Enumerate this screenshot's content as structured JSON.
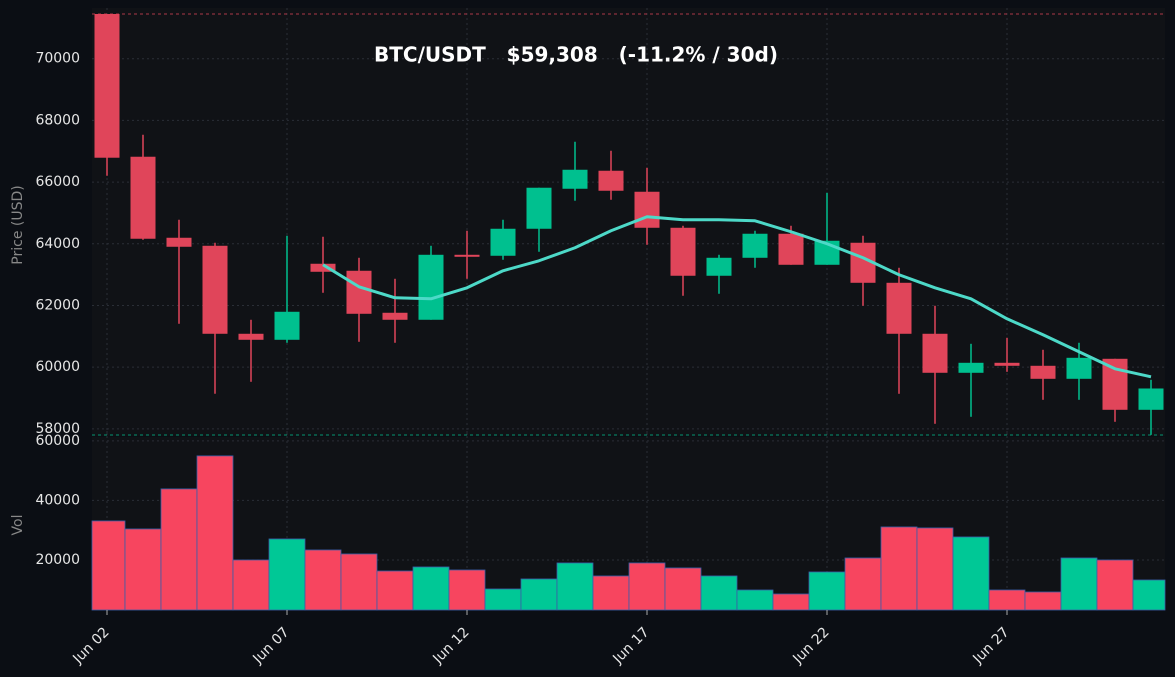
{
  "chart_data": [
    {
      "type": "candlestick",
      "title": "BTC/USDT   $59,308   (-11.2% / 30d)",
      "ylabel": "Price (USD)",
      "categories": [
        "Jun 02",
        null,
        null,
        null,
        null,
        "Jun 07",
        null,
        null,
        null,
        null,
        "Jun 12",
        null,
        null,
        null,
        null,
        "Jun 17",
        null,
        null,
        null,
        null,
        "Jun 22",
        null,
        null,
        null,
        null,
        "Jun 27",
        null,
        null,
        null,
        null
      ],
      "open": [
        71450,
        66822,
        64195,
        63935,
        61082,
        60887,
        63352,
        63125,
        61763,
        61536,
        63643,
        63611,
        64487,
        65784,
        66368,
        65687,
        64519,
        62963,
        63546,
        64325,
        63319,
        64033,
        62735,
        61082,
        59817,
        60141,
        60044,
        59622,
        60271,
        58617
      ],
      "high": [
        71450,
        67535,
        64779,
        64033,
        61536,
        64260,
        64228,
        63546,
        62865,
        63935,
        64422,
        64779,
        65817,
        67308,
        67016,
        66465,
        64584,
        63643,
        64422,
        64584,
        65654,
        64260,
        63222,
        61990,
        60757,
        60952,
        60563,
        60790,
        60271,
        59590
      ],
      "low": [
        66206,
        64130,
        61406,
        59136,
        59525,
        60790,
        62411,
        60822,
        60790,
        61536,
        62865,
        63482,
        63741,
        65395,
        65427,
        63968,
        62314,
        62379,
        63222,
        63319,
        63319,
        61990,
        59136,
        58163,
        58390,
        59849,
        58941,
        58941,
        58228,
        57805
      ],
      "close": [
        66790,
        64163,
        63903,
        61082,
        60887,
        61795,
        63092,
        61730,
        61536,
        63643,
        63579,
        64487,
        65817,
        66400,
        65719,
        64519,
        62963,
        63546,
        64325,
        63319,
        64098,
        62735,
        61082,
        59817,
        60141,
        60044,
        59622,
        60303,
        58617,
        59308
      ],
      "up_color": "#00c08f",
      "down_color": "#e0455a",
      "ma": {
        "color": "#4dd9c8",
        "values": [
          null,
          null,
          null,
          null,
          null,
          null,
          63319,
          62606,
          62249,
          62217,
          62573,
          63125,
          63449,
          63871,
          64422,
          64876,
          64779,
          64779,
          64746,
          64390,
          64001,
          63546,
          62995,
          62573,
          62217,
          61568,
          61049,
          60498,
          59947,
          59687
        ]
      },
      "ylim": [
        57800,
        71450
      ],
      "yticks": [
        58000,
        60000,
        62000,
        64000,
        66000,
        68000,
        70000
      ],
      "grid": true
    },
    {
      "type": "bar",
      "ylabel": "Vol",
      "values": [
        33110,
        30420,
        43870,
        54960,
        20000,
        27060,
        23360,
        22020,
        16300,
        17650,
        16640,
        10260,
        13620,
        19000,
        14630,
        19000,
        17320,
        14630,
        9920,
        8580,
        15970,
        20670,
        31090,
        30760,
        27730,
        9920,
        9250,
        20670,
        20000,
        13280
      ],
      "up_color": "#00c896",
      "down_color": "#f7455f",
      "ylim": [
        3200,
        61300
      ],
      "yticks": [
        20000,
        40000,
        60000
      ],
      "grid": true
    }
  ]
}
